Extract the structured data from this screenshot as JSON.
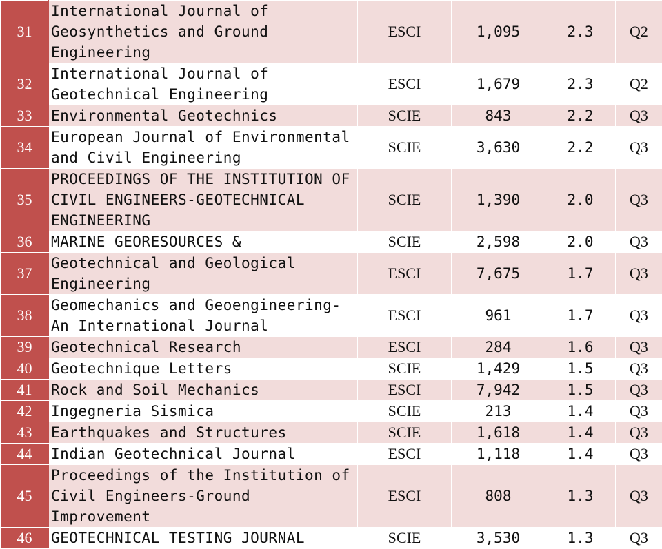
{
  "rows": [
    {
      "rank": "31",
      "journal": "International Journal of Geosynthetics and Ground Engineering",
      "index": "ESCI",
      "citations": "1,095",
      "jif": "2.3",
      "quartile": "Q2"
    },
    {
      "rank": "32",
      "journal": "International Journal of Geotechnical Engineering",
      "index": "ESCI",
      "citations": "1,679",
      "jif": "2.3",
      "quartile": "Q2"
    },
    {
      "rank": "33",
      "journal": "Environmental Geotechnics",
      "index": "SCIE",
      "citations": "843",
      "jif": "2.2",
      "quartile": "Q3"
    },
    {
      "rank": "34",
      "journal": "European Journal of Environmental and Civil Engineering",
      "index": "SCIE",
      "citations": "3,630",
      "jif": "2.2",
      "quartile": "Q3"
    },
    {
      "rank": "35",
      "journal": "PROCEEDINGS OF THE INSTITUTION OF CIVIL ENGINEERS-GEOTECHNICAL ENGINEERING",
      "index": "SCIE",
      "citations": "1,390",
      "jif": "2.0",
      "quartile": "Q3"
    },
    {
      "rank": "36",
      "journal": "MARINE GEORESOURCES &",
      "index": "SCIE",
      "citations": "2,598",
      "jif": "2.0",
      "quartile": "Q3"
    },
    {
      "rank": "37",
      "journal": "Geotechnical and Geological Engineering",
      "index": "ESCI",
      "citations": "7,675",
      "jif": "1.7",
      "quartile": "Q3"
    },
    {
      "rank": "38",
      "journal": "Geomechanics and Geoengineering-An International Journal",
      "index": "ESCI",
      "citations": "961",
      "jif": "1.7",
      "quartile": "Q3"
    },
    {
      "rank": "39",
      "journal": "Geotechnical Research",
      "index": "ESCI",
      "citations": "284",
      "jif": "1.6",
      "quartile": "Q3"
    },
    {
      "rank": "40",
      "journal": "Geotechnique Letters",
      "index": "SCIE",
      "citations": "1,429",
      "jif": "1.5",
      "quartile": "Q3"
    },
    {
      "rank": "41",
      "journal": "Rock and Soil Mechanics",
      "index": "ESCI",
      "citations": "7,942",
      "jif": "1.5",
      "quartile": "Q3"
    },
    {
      "rank": "42",
      "journal": "Ingegneria Sismica",
      "index": "SCIE",
      "citations": "213",
      "jif": "1.4",
      "quartile": "Q3"
    },
    {
      "rank": "43",
      "journal": "Earthquakes and Structures",
      "index": "SCIE",
      "citations": "1,618",
      "jif": "1.4",
      "quartile": "Q3"
    },
    {
      "rank": "44",
      "journal": "Indian Geotechnical Journal",
      "index": "ESCI",
      "citations": "1,118",
      "jif": "1.4",
      "quartile": "Q3"
    },
    {
      "rank": "45",
      "journal": "Proceedings of the Institution of Civil Engineers-Ground Improvement",
      "index": "ESCI",
      "citations": "808",
      "jif": "1.3",
      "quartile": "Q3"
    },
    {
      "rank": "46",
      "journal": "GEOTECHNICAL TESTING JOURNAL",
      "index": "SCIE",
      "citations": "3,530",
      "jif": "1.3",
      "quartile": "Q3"
    }
  ],
  "colors": {
    "rank_background": "#c0504d",
    "shaded_row": "#f2dcdb",
    "plain_row": "#ffffff"
  }
}
